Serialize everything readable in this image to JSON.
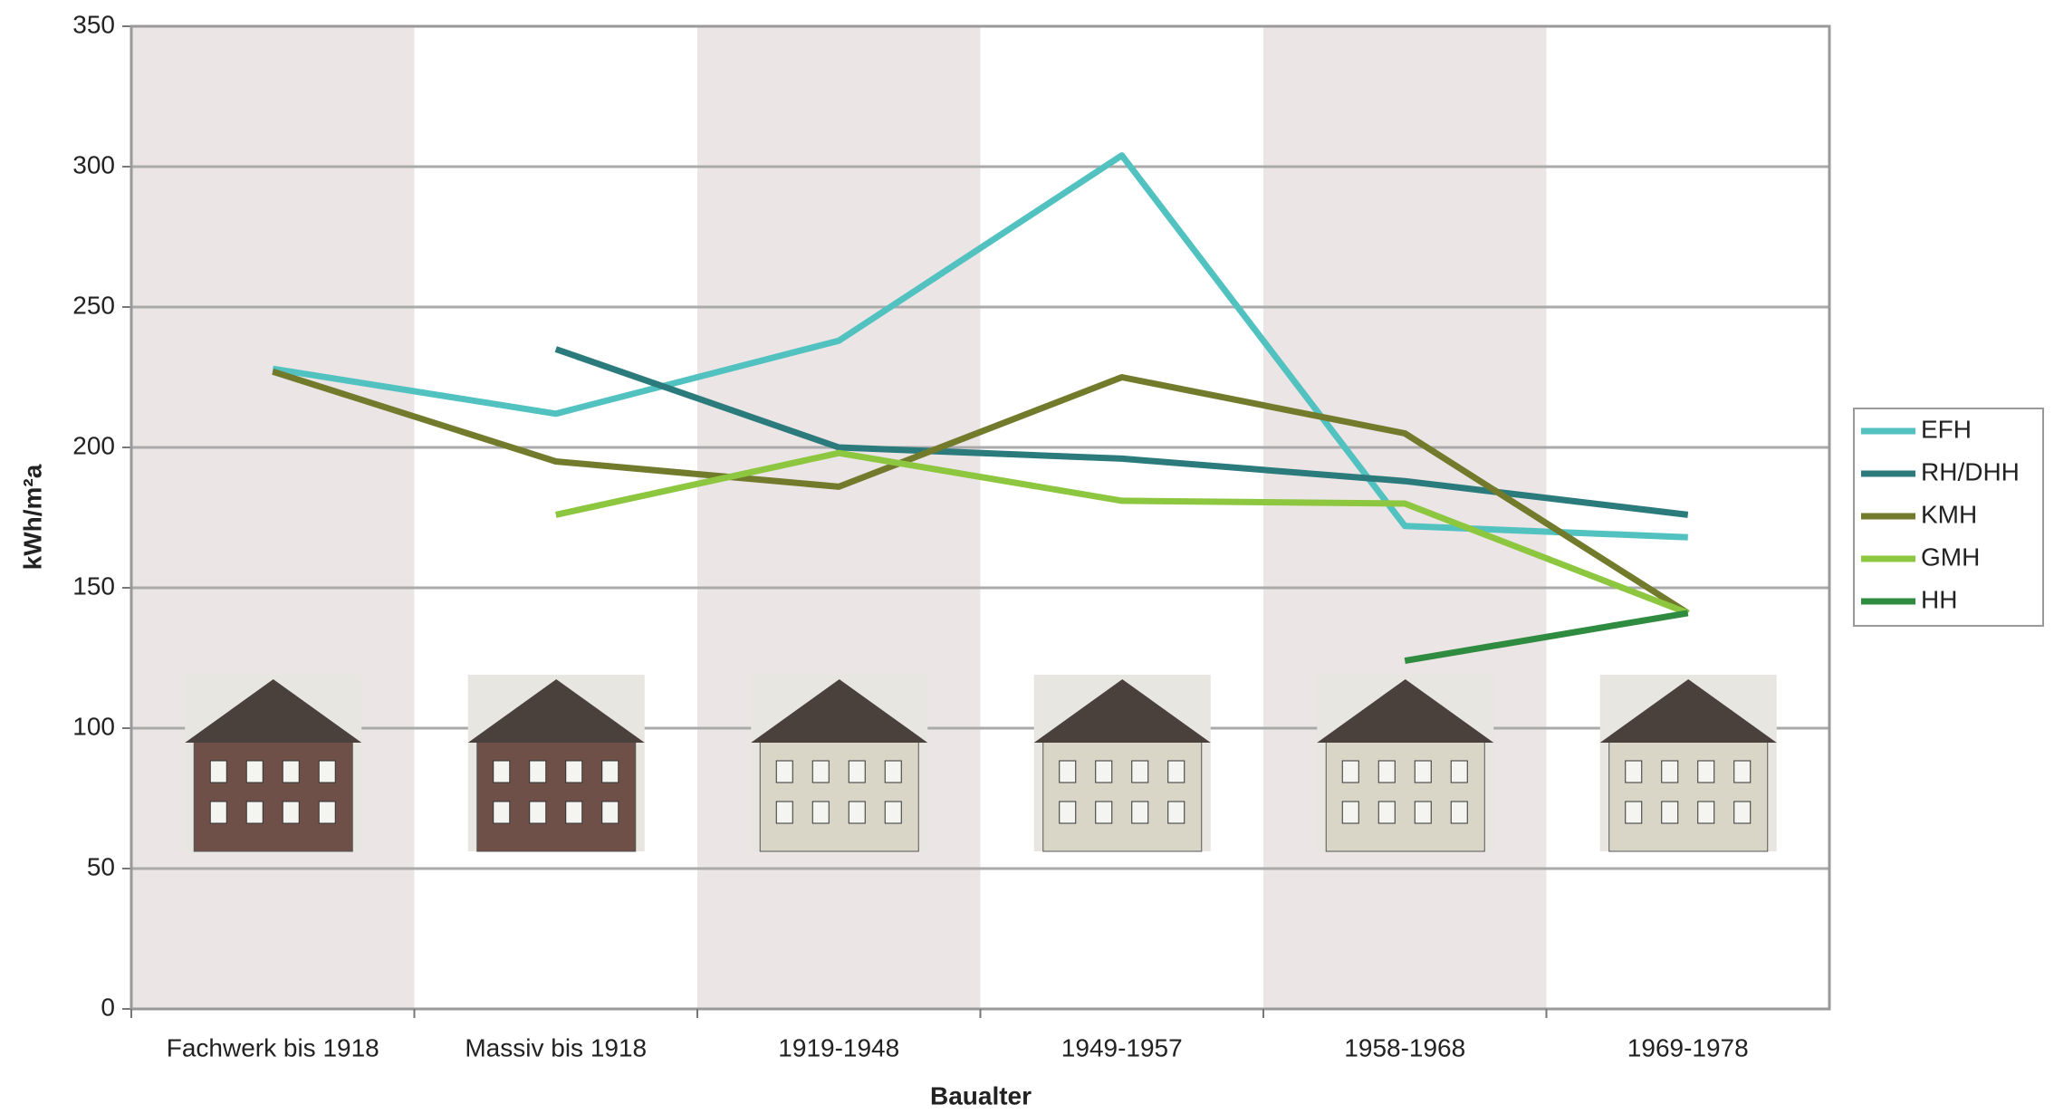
{
  "chart_data": {
    "type": "line",
    "x_label": "Baualter",
    "y_label": "kWh/m²a",
    "categories": [
      "Fachwerk bis 1918",
      "Massiv bis 1918",
      "1919-1948",
      "1949-1957",
      "1958-1968",
      "1969-1978"
    ],
    "series": [
      {
        "name": "EFH",
        "color": "#52c2c0",
        "values": [
          228,
          212,
          238,
          304,
          172,
          168
        ]
      },
      {
        "name": "RH/DHH",
        "color": "#2b7b7c",
        "values": [
          null,
          235,
          200,
          196,
          188,
          176
        ]
      },
      {
        "name": "KMH",
        "color": "#727a2c",
        "values": [
          227,
          195,
          186,
          225,
          205,
          141
        ]
      },
      {
        "name": "GMH",
        "color": "#8dc63f",
        "values": [
          null,
          176,
          198,
          181,
          180,
          141
        ]
      },
      {
        "name": "HH",
        "color": "#2e8b40",
        "values": [
          null,
          null,
          null,
          null,
          124,
          141
        ]
      }
    ],
    "ylim": [
      0,
      350
    ],
    "yticks": [
      0,
      50,
      100,
      150,
      200,
      250,
      300,
      350
    ],
    "grid": true,
    "legend": "right"
  }
}
